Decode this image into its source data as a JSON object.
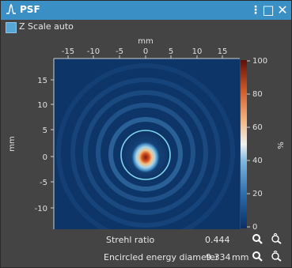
{
  "window": {
    "title": "PSF"
  },
  "toolbar": {
    "menu_icon": "⋮",
    "maximize_icon": "□",
    "close_icon": "✕"
  },
  "z_scale": {
    "label": "Z Scale auto",
    "checked": true
  },
  "plot": {
    "x_unit": "mm",
    "y_unit": "mm",
    "colorbar_unit": "%",
    "x_ticks": [
      "-15",
      "-10",
      "-5",
      "0",
      "5",
      "10",
      "15"
    ],
    "y_ticks": [
      "15",
      "10",
      "5",
      "0",
      "-5",
      "-10"
    ],
    "colorbar_ticks": [
      "100",
      "80",
      "60",
      "40",
      "20",
      "0"
    ]
  },
  "metrics": [
    {
      "label": "Strehl ratio",
      "value": "0.444",
      "unit": ""
    },
    {
      "label": "Encircled energy diameter",
      "value": "9.334",
      "unit": "mm"
    }
  ]
}
